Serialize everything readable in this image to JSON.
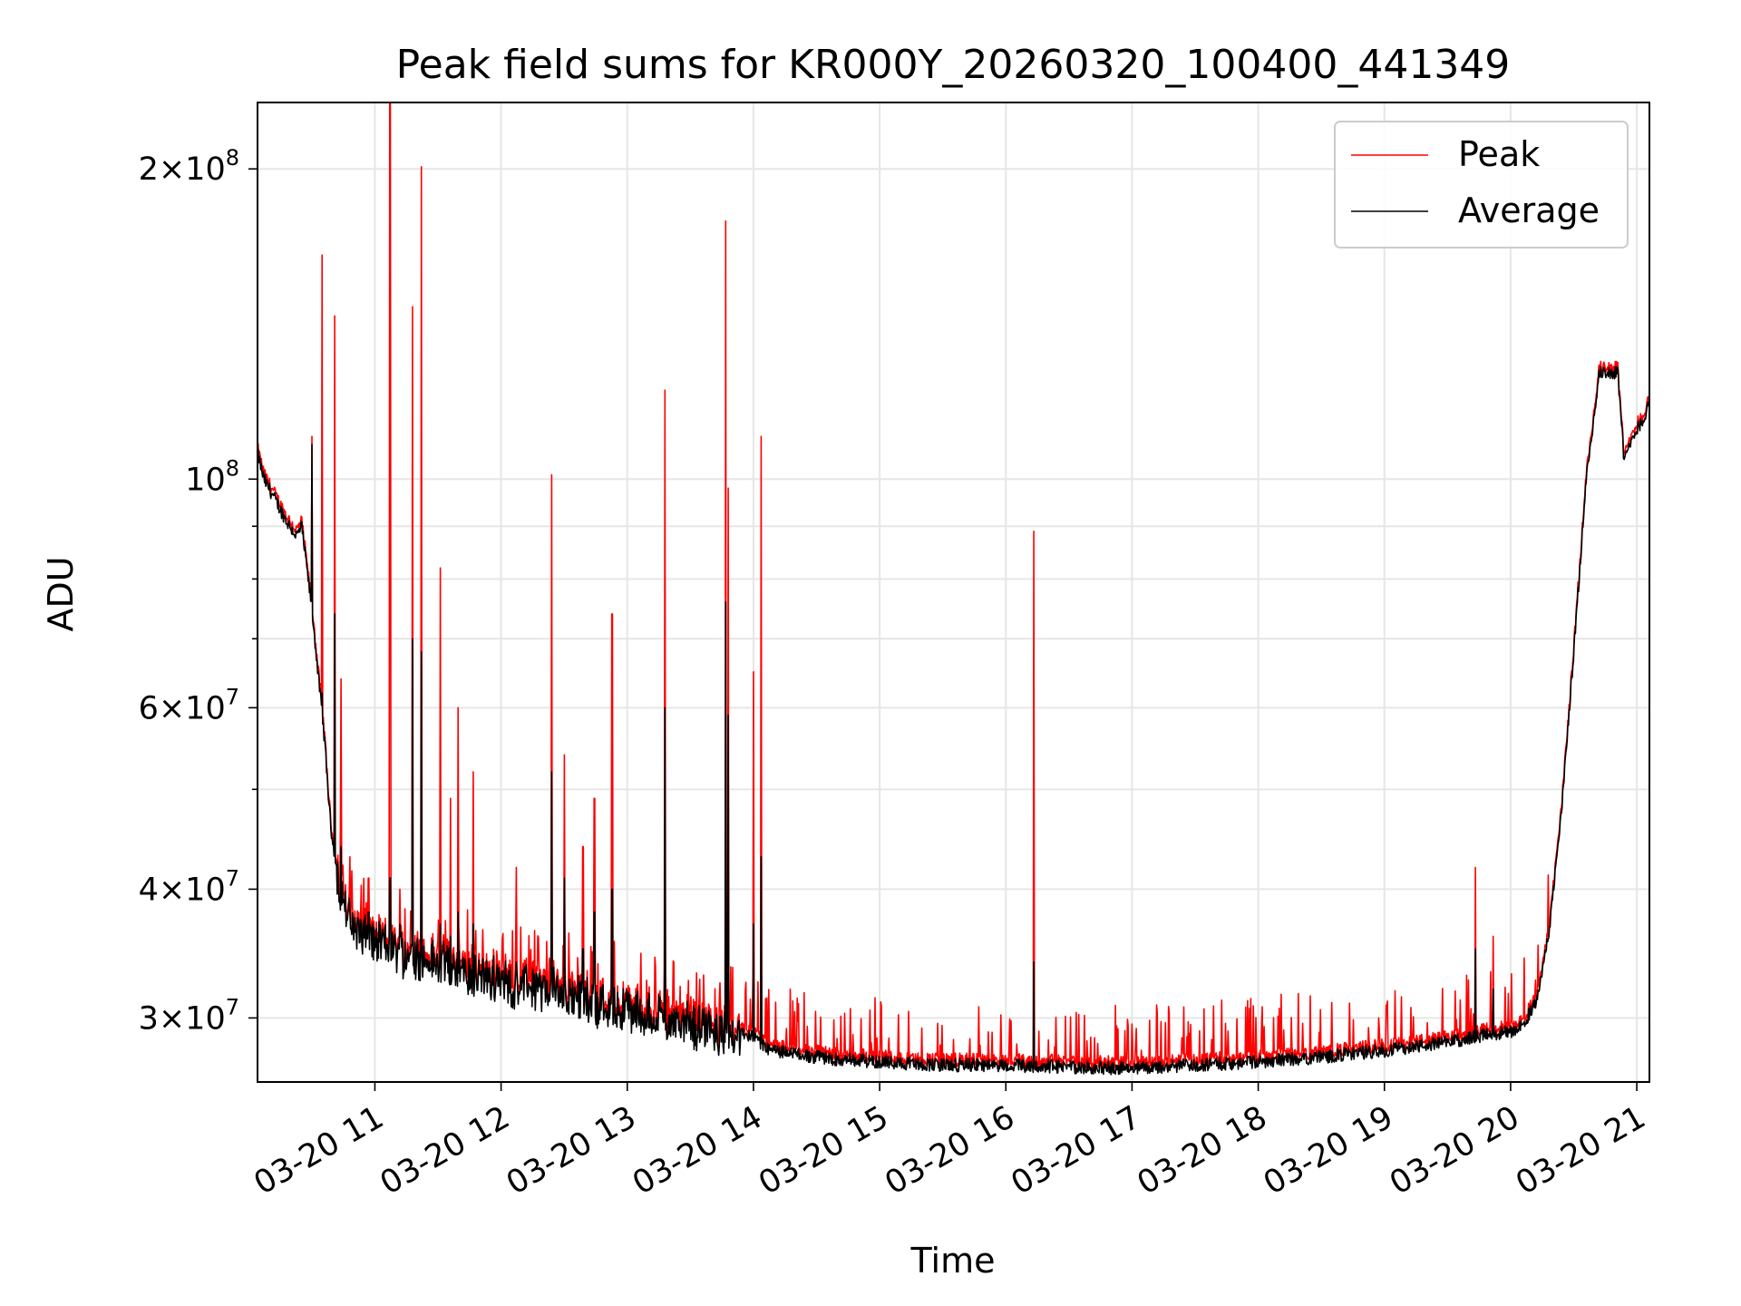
{
  "chart_data": {
    "type": "line",
    "title": "Peak field sums for KR000Y_20260320_100400_441349",
    "xlabel": "Time",
    "ylabel": "ADU",
    "yscale": "log",
    "ylim": [
      26000000,
      232000000
    ],
    "xlim_hours": [
      10.07,
      21.1
    ],
    "grid": true,
    "legend_placement": "top-right",
    "x_ticks": [
      {
        "value": 11,
        "label": "03-20 11"
      },
      {
        "value": 12,
        "label": "03-20 12"
      },
      {
        "value": 13,
        "label": "03-20 13"
      },
      {
        "value": 14,
        "label": "03-20 14"
      },
      {
        "value": 15,
        "label": "03-20 15"
      },
      {
        "value": 16,
        "label": "03-20 16"
      },
      {
        "value": 17,
        "label": "03-20 17"
      },
      {
        "value": 18,
        "label": "03-20 18"
      },
      {
        "value": 19,
        "label": "03-20 19"
      },
      {
        "value": 20,
        "label": "03-20 20"
      },
      {
        "value": 21,
        "label": "03-20 21"
      }
    ],
    "y_ticks": [
      {
        "value": 30000000,
        "mantissa": "3",
        "exponent": "7"
      },
      {
        "value": 40000000,
        "mantissa": "4",
        "exponent": "7"
      },
      {
        "value": 60000000,
        "mantissa": "6",
        "exponent": "7"
      },
      {
        "value": 100000000,
        "mantissa": "",
        "exponent": "8"
      },
      {
        "value": 200000000,
        "mantissa": "2",
        "exponent": "8"
      }
    ],
    "y_minor_ticks": [
      50000000,
      70000000,
      80000000,
      90000000
    ],
    "baseline_average": {
      "x": [
        10.07,
        10.12,
        10.2,
        10.3,
        10.38,
        10.42,
        10.5,
        10.6,
        10.65,
        10.72,
        10.8,
        11.0,
        11.3,
        11.6,
        12.0,
        12.5,
        13.0,
        13.5,
        13.9,
        14.0,
        14.1,
        14.3,
        14.6,
        15.0,
        15.5,
        16.0,
        16.5,
        17.0,
        17.5,
        18.0,
        18.5,
        19.0,
        19.5,
        19.8,
        20.0,
        20.1,
        20.2,
        20.3,
        20.4,
        20.5,
        20.6,
        20.7,
        20.72,
        20.85,
        20.9,
        21.0,
        21.05,
        21.1
      ],
      "y": [
        106000000,
        100000000,
        96000000,
        91000000,
        88000000,
        90000000,
        75000000,
        56000000,
        46000000,
        40000000,
        37000000,
        35500000,
        34500000,
        33500000,
        32500000,
        31600000,
        30500000,
        29500000,
        29000000,
        28700000,
        28000000,
        27700000,
        27400000,
        27200000,
        27000000,
        27000000,
        26900000,
        26800000,
        27000000,
        27200000,
        27500000,
        27900000,
        28400000,
        28900000,
        29100000,
        29600000,
        31000000,
        36000000,
        47000000,
        68000000,
        100000000,
        126000000,
        127000000,
        127000000,
        104000000,
        112000000,
        114000000,
        119000000
      ]
    },
    "series": [
      {
        "name": "Peak",
        "color": "#ff0000",
        "spikes": [
          {
            "x": 10.5,
            "peak": 110000000,
            "avg": 108000000
          },
          {
            "x": 10.58,
            "peak": 165000000,
            "avg": 62000000
          },
          {
            "x": 10.68,
            "peak": 144000000,
            "avg": 74000000
          },
          {
            "x": 10.73,
            "peak": 64000000,
            "avg": 44000000
          },
          {
            "x": 10.8,
            "peak": 43000000,
            "avg": 38000000
          },
          {
            "x": 10.95,
            "peak": 41000000,
            "avg": 38000000
          },
          {
            "x": 11.12,
            "peak": 232000000,
            "avg": 41000000
          },
          {
            "x": 11.2,
            "peak": 40000000,
            "avg": 37000000
          },
          {
            "x": 11.3,
            "peak": 147000000,
            "avg": 70000000
          },
          {
            "x": 11.37,
            "peak": 201000000,
            "avg": 68000000
          },
          {
            "x": 11.52,
            "peak": 82000000,
            "avg": 37000000
          },
          {
            "x": 11.6,
            "peak": 49000000,
            "avg": 36000000
          },
          {
            "x": 11.66,
            "peak": 60000000,
            "avg": 38000000
          },
          {
            "x": 11.78,
            "peak": 52000000,
            "avg": 37000000
          },
          {
            "x": 12.12,
            "peak": 42000000,
            "avg": 34000000
          },
          {
            "x": 12.4,
            "peak": 101000000,
            "avg": 52000000
          },
          {
            "x": 12.5,
            "peak": 54000000,
            "avg": 41000000
          },
          {
            "x": 12.65,
            "peak": 44000000,
            "avg": 35000000
          },
          {
            "x": 12.74,
            "peak": 49000000,
            "avg": 38000000
          },
          {
            "x": 12.88,
            "peak": 74000000,
            "avg": 40000000
          },
          {
            "x": 13.3,
            "peak": 122000000,
            "avg": 60000000
          },
          {
            "x": 13.78,
            "peak": 178000000,
            "avg": 76000000
          },
          {
            "x": 13.8,
            "peak": 98000000,
            "avg": 59000000
          },
          {
            "x": 14.0,
            "peak": 65000000,
            "avg": 37000000
          },
          {
            "x": 14.06,
            "peak": 110000000,
            "avg": 43000000
          },
          {
            "x": 16.22,
            "peak": 89000000,
            "avg": 34000000
          },
          {
            "x": 19.72,
            "peak": 42000000,
            "avg": 35000000
          },
          {
            "x": 19.86,
            "peak": 36000000,
            "avg": 32000000
          }
        ]
      },
      {
        "name": "Average",
        "color": "#000000"
      }
    ]
  }
}
